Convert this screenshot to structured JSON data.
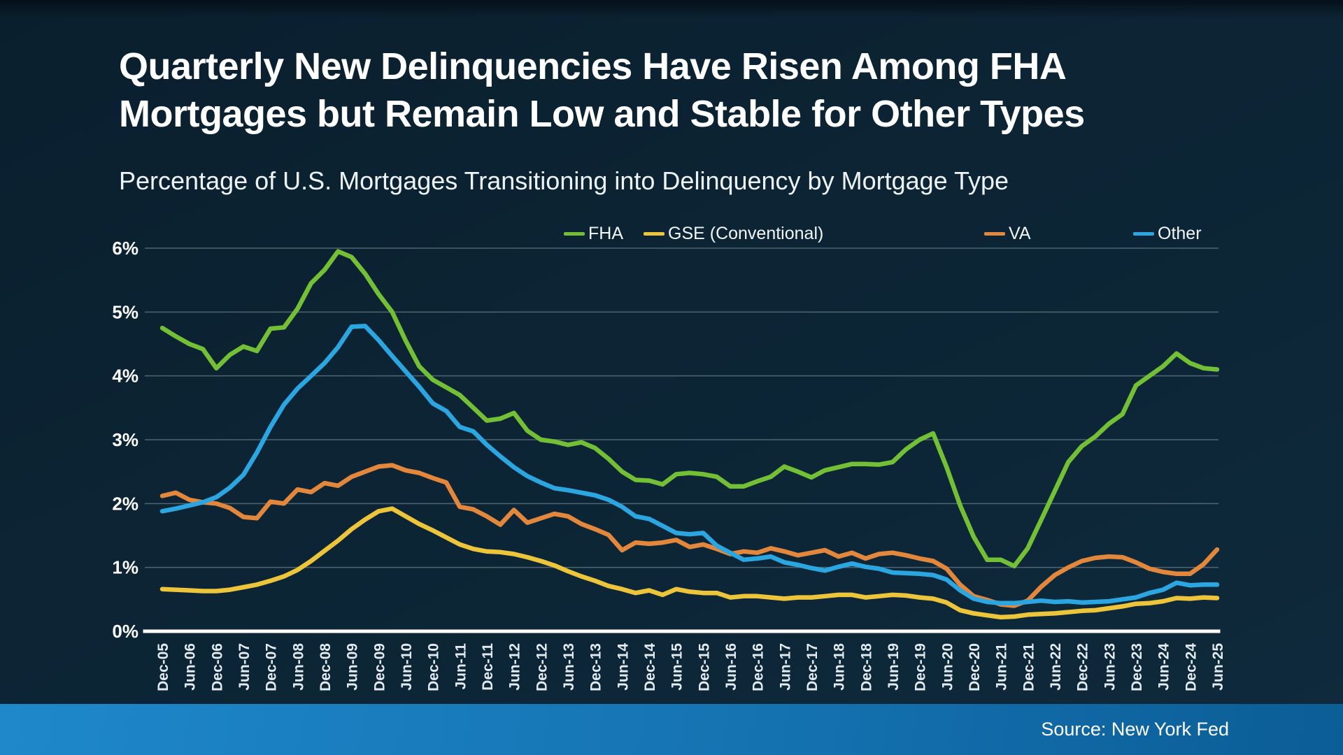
{
  "header": {
    "title": "Quarterly New Delinquencies Have Risen Among FHA Mortgages but Remain Low and Stable for Other Types",
    "subtitle": "Percentage of U.S. Mortgages Transitioning into Delinquency by Mortgage Type"
  },
  "footer": {
    "source": "Source: New York Fed"
  },
  "colors": {
    "background": "#0c2434",
    "bottom_bar_left": "#1e88cb",
    "bottom_bar_right": "#0b5d96",
    "gridline": "#93a4af",
    "axis": "#ffffff",
    "fha": "#73bf35",
    "gse": "#ecc53b",
    "va": "#e2873c",
    "other": "#2ca6e0"
  },
  "chart_data": {
    "type": "line",
    "title": "Percentage of U.S. Mortgages Transitioning into Delinquency by Mortgage Type",
    "xlabel": "",
    "ylabel": "",
    "ylim": [
      0,
      6
    ],
    "yticks": [
      0,
      1,
      2,
      3,
      4,
      5,
      6
    ],
    "ytick_format": "percent",
    "grid": true,
    "legend_position": "top",
    "x_tick_step": 2,
    "x": [
      "Dec-05",
      "Mar-06",
      "Jun-06",
      "Sep-06",
      "Dec-06",
      "Mar-07",
      "Jun-07",
      "Sep-07",
      "Dec-07",
      "Mar-08",
      "Jun-08",
      "Sep-08",
      "Dec-08",
      "Mar-09",
      "Jun-09",
      "Sep-09",
      "Dec-09",
      "Mar-10",
      "Jun-10",
      "Sep-10",
      "Dec-10",
      "Mar-11",
      "Jun-11",
      "Sep-11",
      "Dec-11",
      "Mar-12",
      "Jun-12",
      "Sep-12",
      "Dec-12",
      "Mar-13",
      "Jun-13",
      "Sep-13",
      "Dec-13",
      "Mar-14",
      "Jun-14",
      "Sep-14",
      "Dec-14",
      "Mar-15",
      "Jun-15",
      "Sep-15",
      "Dec-15",
      "Mar-16",
      "Jun-16",
      "Sep-16",
      "Dec-16",
      "Mar-17",
      "Jun-17",
      "Sep-17",
      "Dec-17",
      "Mar-18",
      "Jun-18",
      "Sep-18",
      "Dec-18",
      "Mar-19",
      "Jun-19",
      "Sep-19",
      "Dec-19",
      "Mar-20",
      "Jun-20",
      "Sep-20",
      "Dec-20",
      "Mar-21",
      "Jun-21",
      "Sep-21",
      "Dec-21",
      "Mar-22",
      "Jun-22",
      "Sep-22",
      "Dec-22",
      "Mar-23",
      "Jun-23",
      "Sep-23",
      "Dec-23",
      "Mar-24",
      "Jun-24",
      "Sep-24",
      "Dec-24",
      "Mar-25",
      "Jun-25"
    ],
    "series": [
      {
        "name": "FHA",
        "color": "#73bf35",
        "values": [
          4.75,
          4.62,
          4.5,
          4.42,
          4.12,
          4.33,
          4.46,
          4.39,
          4.74,
          4.76,
          5.05,
          5.45,
          5.66,
          5.95,
          5.86,
          5.6,
          5.28,
          5.0,
          4.55,
          4.15,
          3.94,
          3.82,
          3.7,
          3.5,
          3.3,
          3.33,
          3.42,
          3.14,
          3.0,
          2.97,
          2.92,
          2.96,
          2.87,
          2.7,
          2.5,
          2.37,
          2.36,
          2.3,
          2.46,
          2.48,
          2.46,
          2.42,
          2.27,
          2.27,
          2.35,
          2.42,
          2.58,
          2.5,
          2.41,
          2.52,
          2.57,
          2.62,
          2.62,
          2.61,
          2.65,
          2.85,
          3.0,
          3.1,
          2.57,
          1.97,
          1.48,
          1.12,
          1.12,
          1.02,
          1.3,
          1.75,
          2.2,
          2.65,
          2.9,
          3.05,
          3.25,
          3.4,
          3.85,
          4.0,
          4.15,
          4.35,
          4.2,
          4.12,
          4.1
        ]
      },
      {
        "name": "GSE (Conventional)",
        "color": "#ecc53b",
        "values": [
          0.66,
          0.65,
          0.64,
          0.63,
          0.63,
          0.65,
          0.69,
          0.73,
          0.79,
          0.86,
          0.96,
          1.1,
          1.26,
          1.42,
          1.6,
          1.75,
          1.88,
          1.92,
          1.8,
          1.68,
          1.58,
          1.47,
          1.36,
          1.29,
          1.25,
          1.24,
          1.21,
          1.16,
          1.1,
          1.03,
          0.94,
          0.86,
          0.79,
          0.71,
          0.66,
          0.6,
          0.64,
          0.57,
          0.66,
          0.62,
          0.6,
          0.6,
          0.53,
          0.55,
          0.55,
          0.53,
          0.51,
          0.53,
          0.53,
          0.55,
          0.57,
          0.57,
          0.53,
          0.55,
          0.57,
          0.56,
          0.53,
          0.51,
          0.45,
          0.33,
          0.28,
          0.25,
          0.22,
          0.23,
          0.26,
          0.27,
          0.28,
          0.3,
          0.32,
          0.33,
          0.36,
          0.39,
          0.43,
          0.44,
          0.47,
          0.52,
          0.51,
          0.53,
          0.52
        ]
      },
      {
        "name": "VA",
        "color": "#e2873c",
        "values": [
          2.12,
          2.17,
          2.06,
          2.02,
          2.0,
          1.93,
          1.79,
          1.77,
          2.03,
          2.0,
          2.22,
          2.18,
          2.32,
          2.28,
          2.42,
          2.5,
          2.58,
          2.6,
          2.52,
          2.48,
          2.4,
          2.33,
          1.95,
          1.91,
          1.8,
          1.67,
          1.9,
          1.7,
          1.77,
          1.84,
          1.8,
          1.68,
          1.6,
          1.51,
          1.27,
          1.39,
          1.37,
          1.39,
          1.43,
          1.32,
          1.36,
          1.29,
          1.21,
          1.25,
          1.23,
          1.3,
          1.25,
          1.19,
          1.23,
          1.27,
          1.17,
          1.23,
          1.14,
          1.21,
          1.23,
          1.19,
          1.14,
          1.1,
          0.98,
          0.73,
          0.55,
          0.49,
          0.42,
          0.4,
          0.48,
          0.7,
          0.88,
          1.0,
          1.1,
          1.15,
          1.17,
          1.16,
          1.08,
          0.98,
          0.93,
          0.9,
          0.9,
          1.05,
          1.28
        ]
      },
      {
        "name": "Other",
        "color": "#2ca6e0",
        "values": [
          1.88,
          1.92,
          1.97,
          2.02,
          2.1,
          2.25,
          2.45,
          2.8,
          3.2,
          3.55,
          3.8,
          4.0,
          4.2,
          4.45,
          4.77,
          4.78,
          4.56,
          4.31,
          4.07,
          3.83,
          3.57,
          3.45,
          3.2,
          3.13,
          2.92,
          2.74,
          2.57,
          2.43,
          2.33,
          2.24,
          2.21,
          2.17,
          2.13,
          2.06,
          1.95,
          1.8,
          1.76,
          1.65,
          1.54,
          1.52,
          1.54,
          1.34,
          1.23,
          1.12,
          1.14,
          1.17,
          1.08,
          1.04,
          0.99,
          0.95,
          1.01,
          1.06,
          1.01,
          0.98,
          0.92,
          0.91,
          0.9,
          0.88,
          0.81,
          0.64,
          0.51,
          0.46,
          0.44,
          0.44,
          0.46,
          0.48,
          0.46,
          0.47,
          0.45,
          0.46,
          0.47,
          0.5,
          0.53,
          0.6,
          0.65,
          0.76,
          0.72,
          0.73,
          0.73
        ]
      }
    ]
  }
}
